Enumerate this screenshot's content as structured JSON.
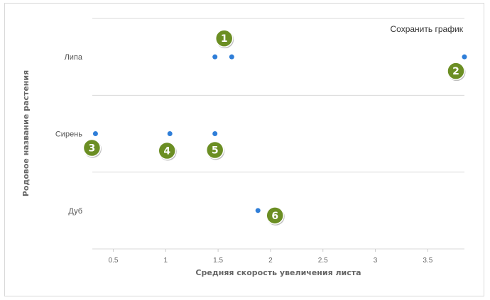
{
  "toolbar": {
    "save_label": "Сохранить график"
  },
  "chart_data": {
    "type": "scatter",
    "title": "",
    "xlabel": "Средняя скорость увеличения листа",
    "ylabel": "Родовое название растения",
    "categories": [
      "Липа",
      "Сирень",
      "Дуб"
    ],
    "xlim": [
      0.3,
      3.85
    ],
    "xticks": [
      "0.5",
      "1",
      "1.5",
      "2",
      "2.5",
      "3",
      "3.5"
    ],
    "grid": true,
    "point_color": "#2f7ed8",
    "badge_color": "#6b8e23",
    "points": [
      {
        "category": "Липа",
        "x": 1.47,
        "badge": "1"
      },
      {
        "category": "Липа",
        "x": 1.63,
        "badge": ""
      },
      {
        "category": "Липа",
        "x": 3.85,
        "badge": "2"
      },
      {
        "category": "Сирень",
        "x": 0.33,
        "badge": "3"
      },
      {
        "category": "Сирень",
        "x": 1.04,
        "badge": "4"
      },
      {
        "category": "Сирень",
        "x": 1.47,
        "badge": "5"
      },
      {
        "category": "Дуб",
        "x": 1.88,
        "badge": "6"
      }
    ]
  }
}
